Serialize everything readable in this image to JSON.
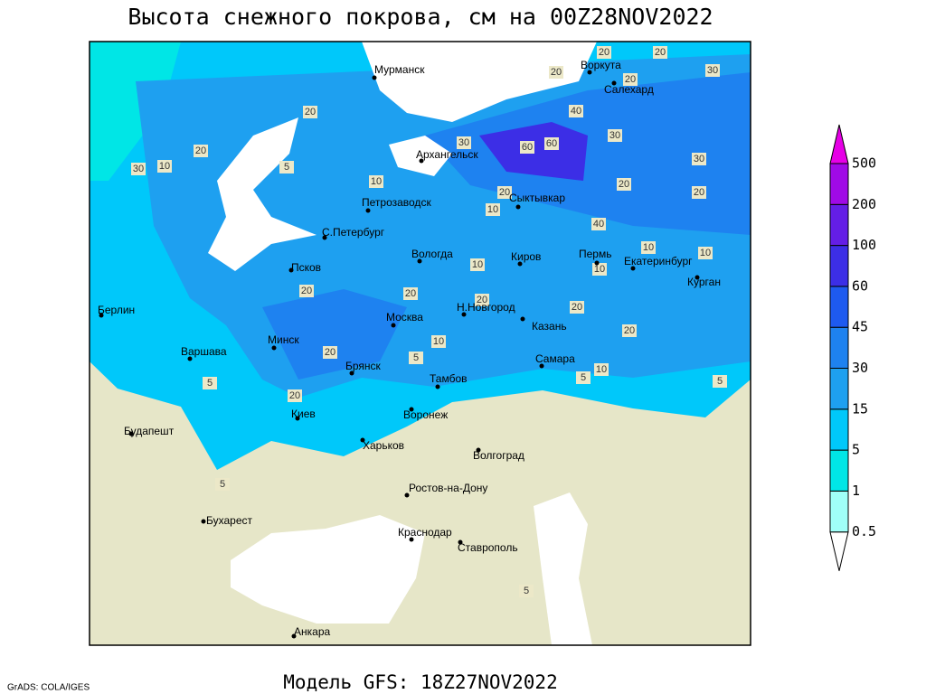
{
  "title": "Высота снежного покрова, см на 00Z28NOV2022",
  "subtitle": "Модель GFS: 18Z27NOV2022",
  "credit": "GrADS: COLA/IGES",
  "colorbar": {
    "levels": [
      0.5,
      1,
      5,
      15,
      30,
      45,
      60,
      100,
      200,
      500
    ],
    "colors": [
      "#ffffff",
      "#a0fff8",
      "#00e6e6",
      "#00c8fa",
      "#1ea0f0",
      "#1e82f0",
      "#1e5af0",
      "#3c2ee6",
      "#641ee6",
      "#a00ae6",
      "#e600e6"
    ]
  },
  "cities": [
    {
      "label": "Мурманск"
    },
    {
      "label": "Воркута"
    },
    {
      "label": "Салехард"
    },
    {
      "label": "Архангельск"
    },
    {
      "label": "Сыктывкар"
    },
    {
      "label": "Петрозаводск"
    },
    {
      "label": "С.Петербург"
    },
    {
      "label": "Вологда"
    },
    {
      "label": "Киров"
    },
    {
      "label": "Пермь"
    },
    {
      "label": "Екатеринбург"
    },
    {
      "label": "Курган"
    },
    {
      "label": "Псков"
    },
    {
      "label": "Берлин"
    },
    {
      "label": "Н.Новгород"
    },
    {
      "label": "Казань"
    },
    {
      "label": "Москва"
    },
    {
      "label": "Минск"
    },
    {
      "label": "Варшава"
    },
    {
      "label": "Самара"
    },
    {
      "label": "Брянск"
    },
    {
      "label": "Тамбов"
    },
    {
      "label": "Киев"
    },
    {
      "label": "Воронеж"
    },
    {
      "label": "Будапешт"
    },
    {
      "label": "Харьков"
    },
    {
      "label": "Волгоград"
    },
    {
      "label": "Ростов-на-Дону"
    },
    {
      "label": "Бухарест"
    },
    {
      "label": "Краснодар"
    },
    {
      "label": "Ставрополь"
    },
    {
      "label": "Анкара"
    }
  ],
  "contour_labels": [
    20,
    20,
    20,
    30,
    20,
    40,
    30,
    30,
    60,
    60,
    30,
    20,
    10,
    30,
    20,
    5,
    10,
    20,
    20,
    20,
    10,
    40,
    10,
    10,
    10,
    10,
    20,
    20,
    20,
    20,
    20,
    10,
    20,
    5,
    10,
    5,
    5,
    5,
    20,
    5,
    5
  ]
}
